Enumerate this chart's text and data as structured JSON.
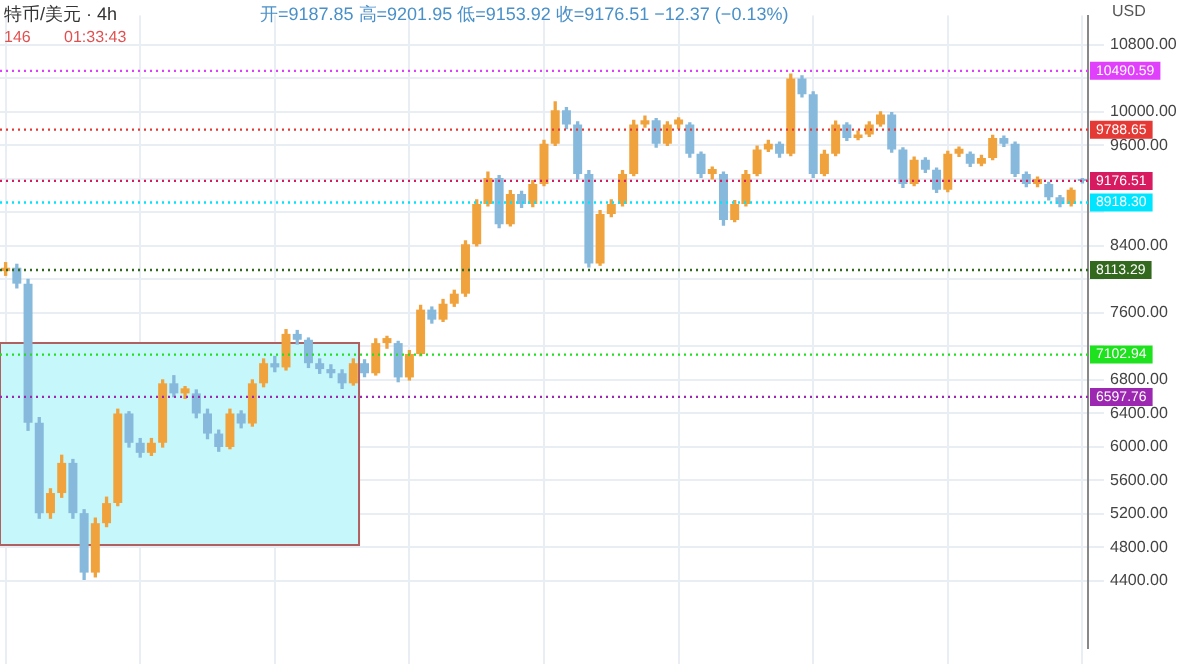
{
  "chart_data": {
    "type": "candlestick",
    "title": "特币/美元 · 4h",
    "subtitle": "开=9187.85 高=9201.95 低=9153.92 收=9176.51 −12.37 (−0.13%)",
    "ylabel": "USD",
    "annotations": [
      "146",
      "01:33:43"
    ],
    "categories": [
      null,
      null,
      null,
      null,
      null,
      null,
      null,
      null,
      null,
      null,
      null,
      null,
      null,
      null,
      null,
      null,
      null,
      null,
      null,
      null,
      null,
      null,
      null,
      null,
      null,
      null,
      null,
      null,
      null,
      null,
      null,
      null,
      null,
      null,
      null,
      null,
      null,
      null,
      null,
      null,
      null,
      null,
      null,
      null,
      null,
      null,
      null,
      null,
      null,
      null,
      null,
      null,
      null,
      null,
      null,
      null,
      null,
      null,
      null,
      null,
      null,
      null,
      null,
      null,
      null,
      null,
      null,
      null,
      null,
      null,
      null,
      null,
      null,
      null,
      null,
      null,
      null,
      null,
      null,
      null,
      null,
      null,
      null,
      null,
      null,
      null,
      null,
      null,
      null,
      null,
      null,
      null,
      null,
      null,
      null,
      null,
      null
    ],
    "colors": [
      "#f0a33c",
      "#86b9db",
      "#86b9db",
      "#86b9db",
      "#f0a33c",
      "#f0a33c",
      "#86b9db",
      "#86b9db",
      "#f0a33c",
      "#f0a33c",
      "#f0a33c",
      "#86b9db",
      "#86b9db",
      "#f0a33c",
      "#f0a33c",
      "#86b9db",
      "#f0a33c",
      "#86b9db",
      "#86b9db",
      "#86b9db",
      "#f0a33c",
      "#86b9db",
      "#f0a33c",
      "#f0a33c",
      "#86b9db",
      "#f0a33c",
      "#86b9db",
      "#86b9db",
      "#86b9db",
      "#86b9db",
      "#86b9db",
      "#f0a33c",
      "#86b9db",
      "#f0a33c",
      "#f0a33c",
      "#86b9db",
      "#f0a33c",
      "#f0a33c",
      "#86b9db",
      "#f0a33c",
      "#f0a33c",
      "#f0a33c",
      "#f0a33c",
      "#f0a33c",
      "#86b9db",
      "#f0a33c",
      "#86b9db",
      "#f0a33c",
      "#f0a33c",
      "#f0a33c",
      "#86b9db",
      "#86b9db",
      "#86b9db",
      "#f0a33c",
      "#f0a33c",
      "#f0a33c",
      "#f0a33c",
      "#f0a33c",
      "#86b9db",
      "#f0a33c",
      "#f0a33c",
      "#86b9db",
      "#86b9db",
      "#f0a33c",
      "#86b9db",
      "#f0a33c",
      "#f0a33c",
      "#f0a33c",
      "#f0a33c",
      "#86b9db",
      "#f0a33c",
      "#86b9db",
      "#86b9db",
      "#f0a33c",
      "#f0a33c",
      "#86b9db",
      "#f0a33c",
      "#f0a33c",
      "#f0a33c",
      "#86b9db",
      "#86b9db",
      "#f0a33c",
      "#86b9db",
      "#86b9db",
      "#f0a33c",
      "#f0a33c",
      "#86b9db",
      "#f0a33c",
      "#f0a33c",
      "#86b9db",
      "#86b9db",
      "#86b9db",
      "#f0a33c",
      "#86b9db",
      "#86b9db",
      "#f0a33c",
      "#86b9db"
    ],
    "ohlc": [
      [
        8100,
        8200,
        8050,
        8140
      ],
      [
        8140,
        8180,
        7900,
        7950
      ],
      [
        7950,
        8000,
        6200,
        6290
      ],
      [
        6290,
        6350,
        5150,
        5210
      ],
      [
        5210,
        5500,
        5150,
        5450
      ],
      [
        5450,
        5900,
        5400,
        5810
      ],
      [
        5810,
        5850,
        5150,
        5210
      ],
      [
        5210,
        5250,
        4420,
        4500
      ],
      [
        4500,
        5150,
        4450,
        5090
      ],
      [
        5090,
        5400,
        5050,
        5330
      ],
      [
        5330,
        6450,
        5300,
        6400
      ],
      [
        6400,
        6420,
        6000,
        6050
      ],
      [
        6050,
        6100,
        5880,
        5930
      ],
      [
        5930,
        6100,
        5900,
        6050
      ],
      [
        6050,
        6800,
        6000,
        6760
      ],
      [
        6760,
        6850,
        6600,
        6640
      ],
      [
        6640,
        6720,
        6580,
        6700
      ],
      [
        6640,
        6680,
        6350,
        6400
      ],
      [
        6400,
        6450,
        6100,
        6160
      ],
      [
        6160,
        6200,
        5950,
        6000
      ],
      [
        6000,
        6450,
        5980,
        6400
      ],
      [
        6400,
        6430,
        6230,
        6280
      ],
      [
        6280,
        6800,
        6250,
        6760
      ],
      [
        6760,
        7050,
        6720,
        7000
      ],
      [
        7000,
        7080,
        6900,
        6950
      ],
      [
        6950,
        7400,
        6920,
        7350
      ],
      [
        7350,
        7390,
        7230,
        7280
      ],
      [
        7280,
        7300,
        6950,
        7000
      ],
      [
        7000,
        7050,
        6880,
        6930
      ],
      [
        6930,
        6980,
        6830,
        6880
      ],
      [
        6880,
        6920,
        6700,
        6760
      ],
      [
        6760,
        7050,
        6740,
        7000
      ],
      [
        7000,
        7040,
        6840,
        6880
      ],
      [
        6880,
        7290,
        6860,
        7240
      ],
      [
        7240,
        7320,
        7180,
        7300
      ],
      [
        7240,
        7260,
        6780,
        6830
      ],
      [
        6830,
        7150,
        6800,
        7110
      ],
      [
        7110,
        7690,
        7090,
        7640
      ],
      [
        7640,
        7670,
        7480,
        7520
      ],
      [
        7520,
        7760,
        7500,
        7710
      ],
      [
        7710,
        7870,
        7680,
        7830
      ],
      [
        7830,
        8460,
        7800,
        8420
      ],
      [
        8420,
        8950,
        8400,
        8900
      ],
      [
        8900,
        9280,
        8880,
        9210
      ],
      [
        9210,
        9240,
        8620,
        8660
      ],
      [
        8660,
        9060,
        8640,
        9020
      ],
      [
        9020,
        9050,
        8860,
        8900
      ],
      [
        8900,
        9180,
        8870,
        9140
      ],
      [
        9140,
        9660,
        9120,
        9620
      ],
      [
        9620,
        10120,
        9600,
        10020
      ],
      [
        10020,
        10050,
        9800,
        9850
      ],
      [
        9850,
        9880,
        9200,
        9260
      ],
      [
        9260,
        9300,
        8150,
        8190
      ],
      [
        8190,
        8820,
        8170,
        8780
      ],
      [
        8780,
        8950,
        8750,
        8900
      ],
      [
        8900,
        9300,
        8880,
        9260
      ],
      [
        9260,
        9900,
        9240,
        9850
      ],
      [
        9850,
        9950,
        9820,
        9900
      ],
      [
        9900,
        9920,
        9580,
        9620
      ],
      [
        9620,
        9880,
        9600,
        9850
      ],
      [
        9850,
        9930,
        9800,
        9910
      ],
      [
        9850,
        9870,
        9460,
        9500
      ],
      [
        9500,
        9520,
        9220,
        9260
      ],
      [
        9260,
        9340,
        9200,
        9320
      ],
      [
        9260,
        9280,
        8650,
        8710
      ],
      [
        8710,
        8940,
        8690,
        8900
      ],
      [
        8900,
        9300,
        8880,
        9260
      ],
      [
        9260,
        9590,
        9240,
        9550
      ],
      [
        9550,
        9660,
        9530,
        9620
      ],
      [
        9620,
        9640,
        9460,
        9500
      ],
      [
        9500,
        10450,
        9480,
        10400
      ],
      [
        10400,
        10430,
        10180,
        10210
      ],
      [
        10210,
        10240,
        9220,
        9260
      ],
      [
        9260,
        9540,
        9240,
        9500
      ],
      [
        9500,
        9890,
        9480,
        9850
      ],
      [
        9850,
        9870,
        9660,
        9690
      ],
      [
        9690,
        9770,
        9670,
        9730
      ],
      [
        9730,
        9880,
        9710,
        9850
      ],
      [
        9850,
        10000,
        9830,
        9970
      ],
      [
        9970,
        9990,
        9520,
        9550
      ],
      [
        9550,
        9570,
        9100,
        9140
      ],
      [
        9140,
        9460,
        9120,
        9430
      ],
      [
        9430,
        9450,
        9280,
        9310
      ],
      [
        9310,
        9330,
        9040,
        9070
      ],
      [
        9070,
        9530,
        9050,
        9500
      ],
      [
        9500,
        9580,
        9470,
        9560
      ],
      [
        9500,
        9520,
        9350,
        9380
      ],
      [
        9380,
        9480,
        9360,
        9450
      ],
      [
        9450,
        9720,
        9430,
        9690
      ],
      [
        9690,
        9710,
        9590,
        9620
      ],
      [
        9620,
        9640,
        9230,
        9260
      ],
      [
        9260,
        9280,
        9110,
        9140
      ],
      [
        9140,
        9220,
        9110,
        9200
      ],
      [
        9140,
        9160,
        8950,
        8980
      ],
      [
        8980,
        9000,
        8870,
        8900
      ],
      [
        8900,
        9090,
        8880,
        9070
      ],
      [
        9187.85,
        9201.95,
        9153.92,
        9176.51
      ]
    ],
    "ylim": [
      3600,
      11150
    ],
    "yticks": [
      {
        "value": 4400,
        "label": "4400.00"
      },
      {
        "value": 4800,
        "label": "4800.00"
      },
      {
        "value": 5200,
        "label": "5200.00"
      },
      {
        "value": 5600,
        "label": "5600.00"
      },
      {
        "value": 6000,
        "label": "6000.00"
      },
      {
        "value": 6400,
        "label": "6400.00"
      },
      {
        "value": 6800,
        "label": "6800.00"
      },
      {
        "value": 7200,
        "label": null
      },
      {
        "value": 7600,
        "label": "7600.00"
      },
      {
        "value": 8000,
        "label": null
      },
      {
        "value": 8400,
        "label": "8400.00"
      },
      {
        "value": 8800,
        "label": null
      },
      {
        "value": 9200,
        "label": null
      },
      {
        "value": 9600,
        "label": "9600.00"
      },
      {
        "value": 10000,
        "label": "10000.00"
      },
      {
        "value": 10400,
        "label": null
      },
      {
        "value": 10800,
        "label": "10800.00"
      }
    ],
    "ref_lines": [
      {
        "axis": "y",
        "value": 10490.59,
        "label": "10490.59",
        "color": "#e040fb",
        "line_style": "dotted"
      },
      {
        "axis": "y",
        "value": 9788.65,
        "label": "9788.65",
        "color": "#e53935",
        "line_style": "dotted"
      },
      {
        "axis": "y",
        "value": 9176.51,
        "label": "9176.51",
        "color": "#d81b60",
        "line_style": "dotted"
      },
      {
        "axis": "y",
        "value": 8918.3,
        "label": "8918.30",
        "color": "#00e5ff",
        "line_style": "dotted"
      },
      {
        "axis": "y",
        "value": 8113.29,
        "label": "8113.29",
        "color": "#33691e",
        "line_style": "dotted"
      },
      {
        "axis": "y",
        "value": 7102.94,
        "label": "7102.94",
        "color": "#1de21d",
        "line_style": "dotted"
      },
      {
        "axis": "y",
        "value": 6597.76,
        "label": "6597.76",
        "color": "#9c27b0",
        "line_style": "dotted"
      }
    ],
    "bands": [
      {
        "axis": "y",
        "from": 4830,
        "to": 7240,
        "color": "#c6f7fb"
      }
    ],
    "grid": true,
    "tick_labels": "y"
  }
}
